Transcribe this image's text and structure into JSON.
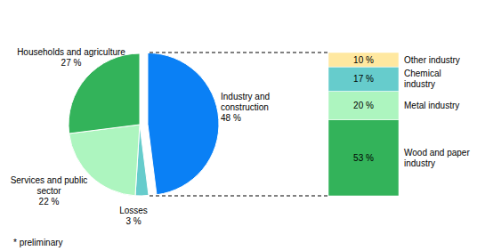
{
  "chart_data": [
    {
      "type": "pie",
      "categories": [
        "Industry and construction",
        "Losses",
        "Services and public sector",
        "Households and agriculture"
      ],
      "values": [
        48,
        3,
        22,
        27
      ],
      "value_labels": [
        "48 %",
        "3 %",
        "22 %",
        "27 %"
      ],
      "colors": [
        "#0a80f5",
        "#66cccc",
        "#adf5bf",
        "#33b35a"
      ],
      "data_labels": true
    },
    {
      "type": "bar",
      "stacked": true,
      "categories": [
        "Wood and paper industry",
        "Metal industry",
        "Chemical industry",
        "Other industry"
      ],
      "values": [
        53,
        20,
        17,
        10
      ],
      "value_labels": [
        "53 %",
        "20 %",
        "17 %",
        "10 %"
      ],
      "colors": [
        "#33b35a",
        "#adf5bf",
        "#66cccc",
        "#ffe8a0"
      ],
      "data_labels": true,
      "tick_labels": false
    }
  ],
  "footnote": "* preliminary"
}
